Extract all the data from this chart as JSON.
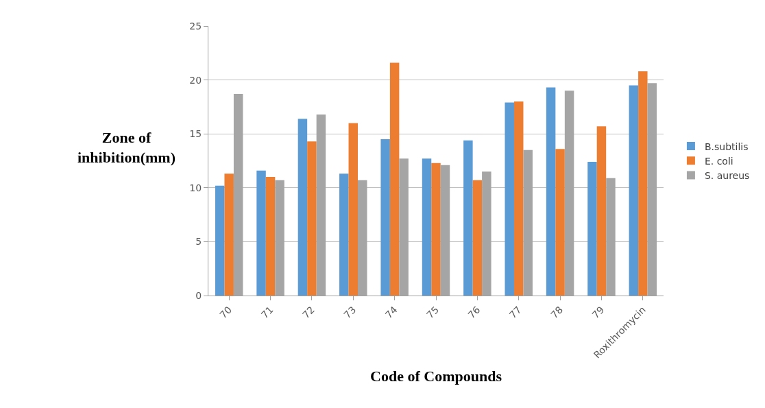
{
  "chart_data": {
    "type": "bar",
    "xlabel": "Code of Compounds",
    "ylabel": "Zone of inhibition(mm)",
    "categories": [
      "70",
      "71",
      "72",
      "73",
      "74",
      "75",
      "76",
      "77",
      "78",
      "79",
      "Roxithromycin"
    ],
    "series": [
      {
        "name": "B.subtilis",
        "color": "#5b9bd5",
        "values": [
          10.2,
          11.6,
          16.4,
          11.3,
          14.5,
          12.7,
          14.4,
          17.9,
          19.3,
          12.4,
          19.5
        ]
      },
      {
        "name": "E. coli",
        "color": "#ed7d31",
        "values": [
          11.3,
          11.0,
          14.3,
          16.0,
          21.6,
          12.3,
          10.7,
          18.0,
          13.6,
          15.7,
          20.8
        ]
      },
      {
        "name": "S. aureus",
        "color": "#a5a5a5",
        "values": [
          18.7,
          10.7,
          16.8,
          10.7,
          12.7,
          12.1,
          11.5,
          13.5,
          19.0,
          10.9,
          19.7
        ]
      }
    ],
    "ylim": [
      0,
      25
    ],
    "yticks": [
      0,
      5,
      10,
      15,
      20,
      25
    ],
    "grid": "y",
    "legend": "right"
  }
}
